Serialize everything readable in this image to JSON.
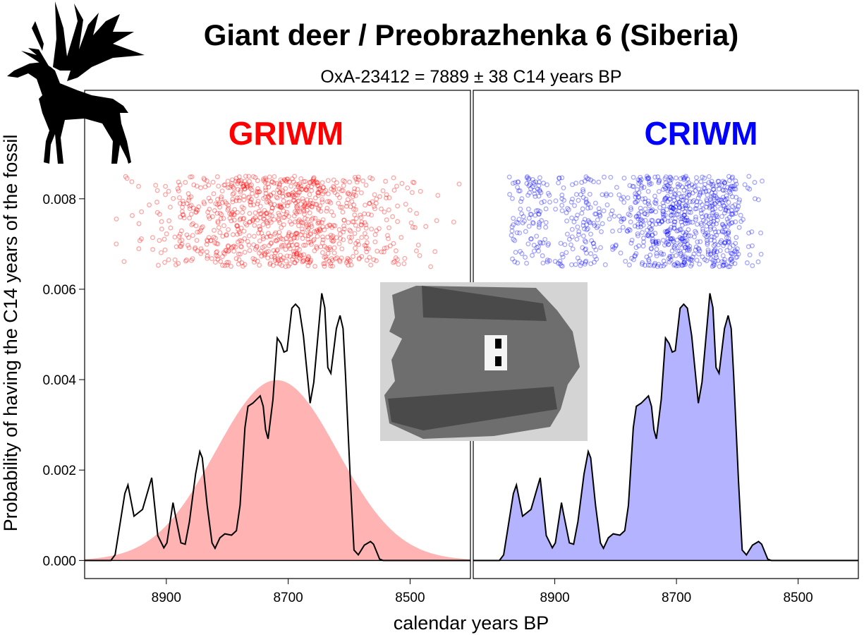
{
  "chart_data": {
    "type": "area",
    "title": "Giant deer / Preobrazhenka 6 (Siberia)",
    "subtitle": "OxA-23412 = 7889 ± 38 C14 years BP",
    "xlabel": "calendar years BP",
    "ylabel": "Probability of having the C14 years of the fossil",
    "xlim": [
      9034,
      8401
    ],
    "ylim": [
      -0.0004,
      0.0104
    ],
    "x_reversed": true,
    "grid": false,
    "xticks": [
      8900,
      8700,
      8500
    ],
    "xtick_labels": [
      "8900",
      "8700",
      "8500"
    ],
    "yticks": [
      0,
      0.002,
      0.004,
      0.006,
      0.008
    ],
    "ytick_labels": [
      "0.000",
      "0.002",
      "0.004",
      "0.006",
      "0.008"
    ],
    "calibrated_density": {
      "x": [
        8991,
        8984,
        8968,
        8963,
        8953,
        8939,
        8924,
        8914,
        8904,
        8899,
        8889,
        8886,
        8876,
        8869,
        8862,
        8852,
        8845,
        8841,
        8833,
        8825,
        8820,
        8812,
        8804,
        8793,
        8785,
        8779,
        8771,
        8766,
        8758,
        8746,
        8741,
        8737,
        8733,
        8725,
        8718,
        8712,
        8707,
        8702,
        8694,
        8688,
        8682,
        8675,
        8664,
        8658,
        8645,
        8640,
        8635,
        8630,
        8621,
        8615,
        8610,
        8606,
        8598,
        8592,
        8585,
        8575,
        8565,
        8560,
        8550,
        8544
      ],
      "y": [
        0,
        0.000125,
        0.00148,
        0.00167,
        0.00098,
        0.00113,
        0.00183,
        0.00055,
        0.00028,
        0.00039,
        0.00128,
        0.00106,
        0.00039,
        0.00036,
        0.00086,
        0.00191,
        0.00241,
        0.00227,
        0.00122,
        0.00039,
        0.00027,
        0.0005,
        0.00059,
        0.00056,
        0.00066,
        0.00122,
        0.00294,
        0.00341,
        0.00348,
        0.00364,
        0.00341,
        0.00289,
        0.00269,
        0.00356,
        0.00492,
        0.0048,
        0.00461,
        0.00464,
        0.00558,
        0.00567,
        0.00558,
        0.00497,
        0.00348,
        0.00394,
        0.00591,
        0.00559,
        0.00427,
        0.00414,
        0.00513,
        0.00542,
        0.00513,
        0.00409,
        0.00175,
        0.00023,
        0.000125,
        0.00034,
        0.00042,
        0.00036,
        3e-05,
        0
      ]
    },
    "panels": [
      {
        "label": "GRIWM",
        "color": "#ff0000",
        "fill": "#ffb3b3",
        "model": "normal",
        "mean": 8719,
        "sd": 100,
        "scatter_band": [
          0.0065,
          0.0085
        ]
      },
      {
        "label": "CRIWM",
        "color": "#0000ff",
        "fill": "#b3b3ff",
        "model": "calibrated_density",
        "scatter_band": [
          0.0065,
          0.0085
        ]
      }
    ]
  },
  "images": {
    "silhouette": "giant-deer-silhouette",
    "photo": "giant-deer-maxilla-photo"
  }
}
